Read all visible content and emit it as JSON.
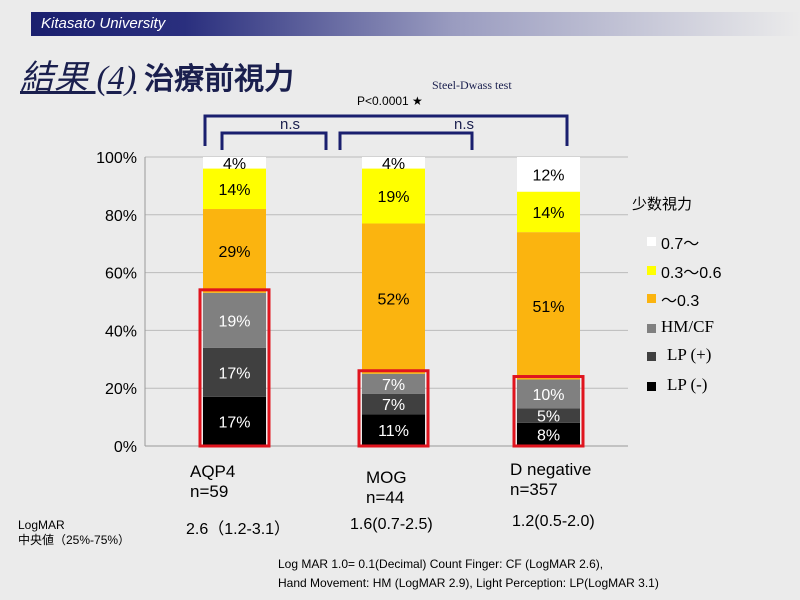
{
  "header": {
    "institution": "Kitasato University",
    "title_italic": "結果 (4)",
    "title_main": "治療前視力"
  },
  "stats": {
    "test": "Steel-Dwass test",
    "overall": "P<0.0001 ★",
    "pair1": "n.s",
    "pair2": "n.s"
  },
  "chart_data": {
    "type": "bar",
    "stacked": true,
    "categories": [
      "AQP4",
      "MOG",
      "D negative"
    ],
    "category_n": [
      "n=59",
      "n=44",
      "n=357"
    ],
    "yticks": [
      "0%",
      "20%",
      "40%",
      "60%",
      "80%",
      "100%"
    ],
    "ylim": [
      0,
      100
    ],
    "grid": true,
    "legend_position": "right",
    "legend_title": "少数視力",
    "series": [
      {
        "name": "LP (-)",
        "color": "#000000",
        "values": [
          17,
          11,
          8
        ]
      },
      {
        "name": "LP (+)",
        "color": "#404040",
        "values": [
          17,
          7,
          5
        ]
      },
      {
        "name": "HM/CF",
        "color": "#808080",
        "values": [
          19,
          7,
          10
        ]
      },
      {
        "name": "～0.3",
        "color": "#fbb40f",
        "values": [
          29,
          52,
          51
        ]
      },
      {
        "name": "0.3～0.6",
        "color": "#ffff00",
        "values": [
          14,
          19,
          14
        ]
      },
      {
        "name": "0.7～",
        "color": "#ffffff",
        "values": [
          4,
          4,
          12
        ]
      }
    ],
    "highlight_color": "#e0141e"
  },
  "logmar": {
    "label1": "LogMAR",
    "label2": "中央値（25%-75%）",
    "values": [
      "2.6（1.2-3.1）",
      "1.6(0.7-2.5)",
      "1.2(0.5-2.0)"
    ]
  },
  "footnote": {
    "line1": "Log MAR 1.0= 0.1(Decimal) Count Finger: CF (LogMAR 2.6),",
    "line2": "Hand Movement: HM (LogMAR 2.9), Light Perception: LP(LogMAR 3.1)"
  }
}
